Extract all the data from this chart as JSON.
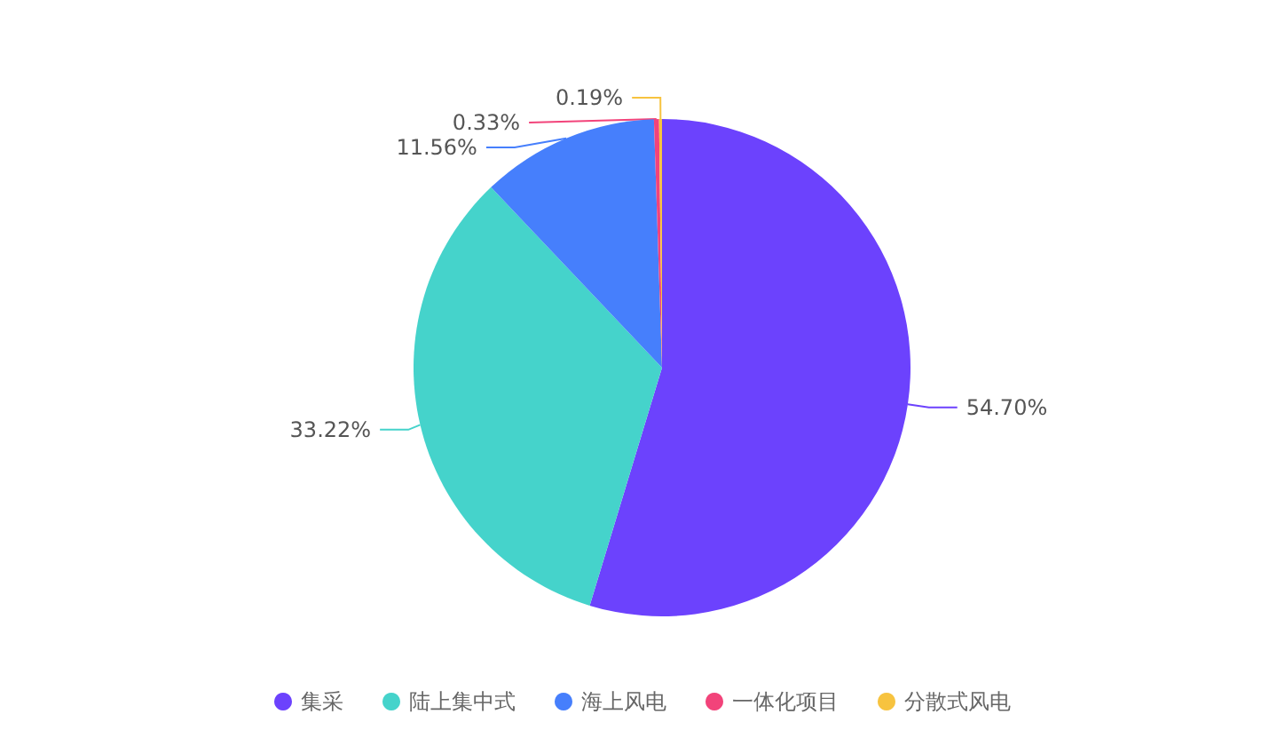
{
  "chart_data": {
    "type": "pie",
    "categories": [
      "集采",
      "陆上集中式",
      "海上风电",
      "一体化项目",
      "分散式风电"
    ],
    "values": [
      54.7,
      33.22,
      11.56,
      0.33,
      0.19
    ],
    "value_labels": [
      "54.70%",
      "33.22%",
      "11.56%",
      "0.33%",
      "0.19%"
    ],
    "colors": [
      "#6c42fd",
      "#45d3cb",
      "#467ffc",
      "#f2437a",
      "#f7c33f"
    ],
    "legend": "bottom"
  }
}
